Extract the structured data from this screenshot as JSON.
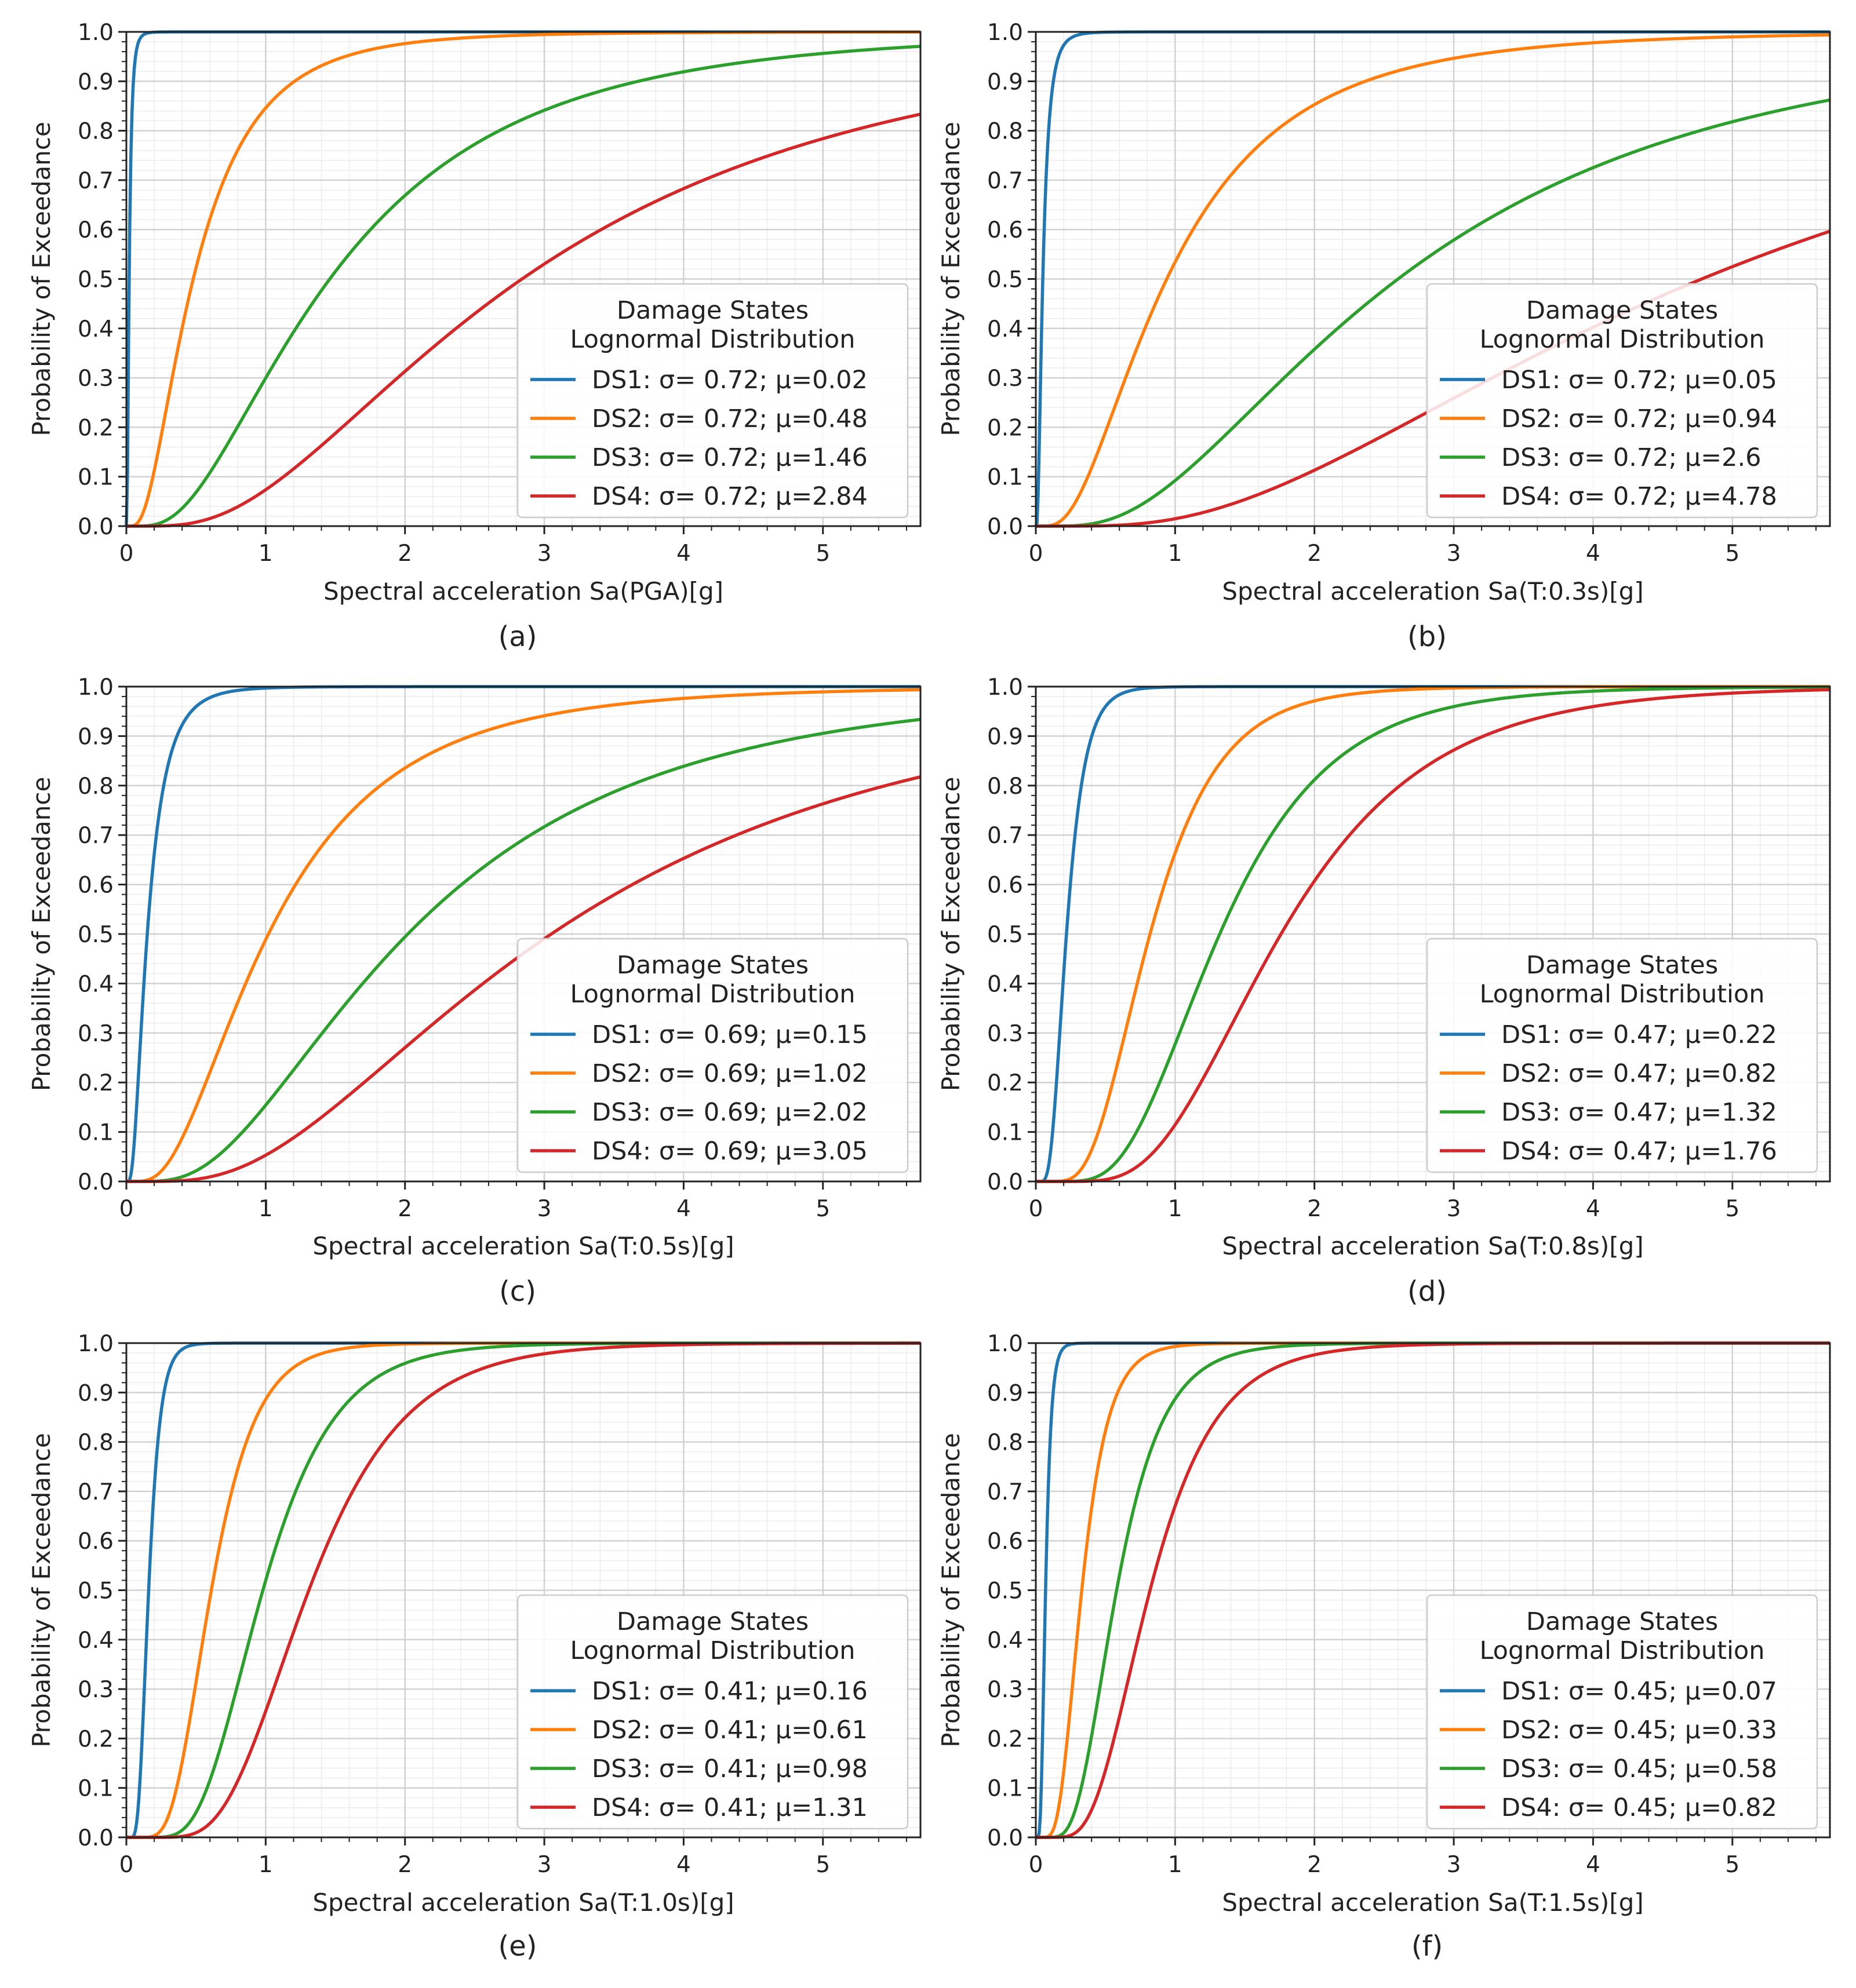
{
  "figure": {
    "y_axis_label": "Probability of Exceedance",
    "legend_title_line1": "Damage States",
    "legend_title_line2": "Lognormal Distribution",
    "series_colors": [
      "#1f77b4",
      "#ff7f0e",
      "#2ca02c",
      "#d62728"
    ]
  },
  "chart_data": [
    {
      "type": "line",
      "caption": "(a)",
      "xlabel": "Spectral acceleration Sa(PGA)[g]",
      "ylabel": "Probability of Exceedance",
      "xlim": [
        0,
        5.7
      ],
      "ylim": [
        0,
        1.0
      ],
      "xticks": [
        0,
        1,
        2,
        3,
        4,
        5
      ],
      "yticks": [
        0.0,
        0.1,
        0.2,
        0.3,
        0.4,
        0.5,
        0.6,
        0.7,
        0.8,
        0.9,
        1.0
      ],
      "grid": true,
      "legend_position": "center-right",
      "series": [
        {
          "name": "DS1: σ= 0.72; μ=0.02",
          "sigma": 0.72,
          "mu": 0.02
        },
        {
          "name": "DS2: σ= 0.72; μ=0.48",
          "sigma": 0.72,
          "mu": 0.48
        },
        {
          "name": "DS3: σ= 0.72; μ=1.46",
          "sigma": 0.72,
          "mu": 1.46
        },
        {
          "name": "DS4: σ= 0.72; μ=2.84",
          "sigma": 0.72,
          "mu": 2.84
        }
      ]
    },
    {
      "type": "line",
      "caption": "(b)",
      "xlabel": "Spectral acceleration Sa(T:0.3s)[g]",
      "ylabel": "Probability of Exceedance",
      "xlim": [
        0,
        5.7
      ],
      "ylim": [
        0,
        1.0
      ],
      "xticks": [
        0,
        1,
        2,
        3,
        4,
        5
      ],
      "yticks": [
        0.0,
        0.1,
        0.2,
        0.3,
        0.4,
        0.5,
        0.6,
        0.7,
        0.8,
        0.9,
        1.0
      ],
      "grid": true,
      "legend_position": "center-right",
      "series": [
        {
          "name": "DS1: σ= 0.72; μ=0.05",
          "sigma": 0.72,
          "mu": 0.05
        },
        {
          "name": "DS2: σ= 0.72; μ=0.94",
          "sigma": 0.72,
          "mu": 0.94
        },
        {
          "name": "DS3: σ= 0.72; μ=2.6",
          "sigma": 0.72,
          "mu": 2.6
        },
        {
          "name": "DS4: σ= 0.72; μ=4.78",
          "sigma": 0.72,
          "mu": 4.78
        }
      ]
    },
    {
      "type": "line",
      "caption": "(c)",
      "xlabel": "Spectral acceleration Sa(T:0.5s)[g]",
      "ylabel": "Probability of Exceedance",
      "xlim": [
        0,
        5.7
      ],
      "ylim": [
        0,
        1.0
      ],
      "xticks": [
        0,
        1,
        2,
        3,
        4,
        5
      ],
      "yticks": [
        0.0,
        0.1,
        0.2,
        0.3,
        0.4,
        0.5,
        0.6,
        0.7,
        0.8,
        0.9,
        1.0
      ],
      "grid": true,
      "legend_position": "center-right",
      "series": [
        {
          "name": "DS1: σ= 0.69; μ=0.15",
          "sigma": 0.69,
          "mu": 0.15
        },
        {
          "name": "DS2: σ= 0.69; μ=1.02",
          "sigma": 0.69,
          "mu": 1.02
        },
        {
          "name": "DS3: σ= 0.69; μ=2.02",
          "sigma": 0.69,
          "mu": 2.02
        },
        {
          "name": "DS4: σ= 0.69; μ=3.05",
          "sigma": 0.69,
          "mu": 3.05
        }
      ]
    },
    {
      "type": "line",
      "caption": "(d)",
      "xlabel": "Spectral acceleration Sa(T:0.8s)[g]",
      "ylabel": "Probability of Exceedance",
      "xlim": [
        0,
        5.7
      ],
      "ylim": [
        0,
        1.0
      ],
      "xticks": [
        0,
        1,
        2,
        3,
        4,
        5
      ],
      "yticks": [
        0.0,
        0.1,
        0.2,
        0.3,
        0.4,
        0.5,
        0.6,
        0.7,
        0.8,
        0.9,
        1.0
      ],
      "grid": true,
      "legend_position": "center-right",
      "series": [
        {
          "name": "DS1: σ= 0.47; μ=0.22",
          "sigma": 0.47,
          "mu": 0.22
        },
        {
          "name": "DS2: σ= 0.47; μ=0.82",
          "sigma": 0.47,
          "mu": 0.82
        },
        {
          "name": "DS3: σ= 0.47; μ=1.32",
          "sigma": 0.47,
          "mu": 1.32
        },
        {
          "name": "DS4: σ= 0.47; μ=1.76",
          "sigma": 0.47,
          "mu": 1.76
        }
      ]
    },
    {
      "type": "line",
      "caption": "(e)",
      "xlabel": "Spectral acceleration Sa(T:1.0s)[g]",
      "ylabel": "Probability of Exceedance",
      "xlim": [
        0,
        5.7
      ],
      "ylim": [
        0,
        1.0
      ],
      "xticks": [
        0,
        1,
        2,
        3,
        4,
        5
      ],
      "yticks": [
        0.0,
        0.1,
        0.2,
        0.3,
        0.4,
        0.5,
        0.6,
        0.7,
        0.8,
        0.9,
        1.0
      ],
      "grid": true,
      "legend_position": "center-right",
      "series": [
        {
          "name": "DS1: σ= 0.41; μ=0.16",
          "sigma": 0.41,
          "mu": 0.16
        },
        {
          "name": "DS2: σ= 0.41; μ=0.61",
          "sigma": 0.41,
          "mu": 0.61
        },
        {
          "name": "DS3: σ= 0.41; μ=0.98",
          "sigma": 0.41,
          "mu": 0.98
        },
        {
          "name": "DS4: σ= 0.41; μ=1.31",
          "sigma": 0.41,
          "mu": 1.31
        }
      ]
    },
    {
      "type": "line",
      "caption": "(f)",
      "xlabel": "Spectral acceleration Sa(T:1.5s)[g]",
      "ylabel": "Probability of Exceedance",
      "xlim": [
        0,
        5.7
      ],
      "ylim": [
        0,
        1.0
      ],
      "xticks": [
        0,
        1,
        2,
        3,
        4,
        5
      ],
      "yticks": [
        0.0,
        0.1,
        0.2,
        0.3,
        0.4,
        0.5,
        0.6,
        0.7,
        0.8,
        0.9,
        1.0
      ],
      "grid": true,
      "legend_position": "center-right",
      "series": [
        {
          "name": "DS1: σ= 0.45; μ=0.07",
          "sigma": 0.45,
          "mu": 0.07
        },
        {
          "name": "DS2: σ= 0.45; μ=0.33",
          "sigma": 0.45,
          "mu": 0.33
        },
        {
          "name": "DS3: σ= 0.45; μ=0.58",
          "sigma": 0.45,
          "mu": 0.58
        },
        {
          "name": "DS4: σ= 0.45; μ=0.82",
          "sigma": 0.45,
          "mu": 0.82
        }
      ]
    }
  ]
}
